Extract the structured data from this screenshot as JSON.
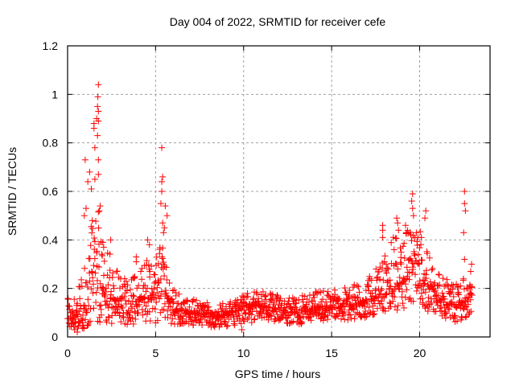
{
  "chart_data": {
    "type": "scatter",
    "title": "Day 004 of 2022, SRMTID for receiver cefe",
    "xlabel": "GPS time / hours",
    "ylabel": "SRMTID / TECUs",
    "xlim": [
      0,
      24
    ],
    "ylim": [
      0,
      1.2
    ],
    "xticks": [
      0,
      5,
      10,
      15,
      20
    ],
    "xtick_labels": [
      "0",
      "5",
      "10",
      "15",
      "20"
    ],
    "yticks": [
      0,
      0.2,
      0.4,
      0.6,
      0.8,
      1.0,
      1.2
    ],
    "ytick_labels": [
      "0",
      "0.2",
      "0.4",
      "0.6",
      "0.8",
      "1",
      "1.2"
    ],
    "grid": true,
    "marker": "+",
    "series": [
      {
        "name": "SRMTID",
        "color": "#ff0000",
        "x_range_hours": [
          0.0,
          23.0
        ],
        "envelope_note": "Dense scatter of thousands of points; envelope gives approximate median and upper/lower spread per hour",
        "envelope": [
          {
            "hour": 0.0,
            "median": 0.12,
            "low": 0.04,
            "high": 0.19
          },
          {
            "hour": 0.5,
            "median": 0.08,
            "low": 0.02,
            "high": 0.17
          },
          {
            "hour": 1.0,
            "median": 0.1,
            "low": 0.03,
            "high": 0.3
          },
          {
            "hour": 1.5,
            "median": 0.28,
            "low": 0.06,
            "high": 0.6
          },
          {
            "hour": 2.0,
            "median": 0.2,
            "low": 0.06,
            "high": 0.45
          },
          {
            "hour": 2.5,
            "median": 0.16,
            "low": 0.05,
            "high": 0.33
          },
          {
            "hour": 3.0,
            "median": 0.14,
            "low": 0.05,
            "high": 0.27
          },
          {
            "hour": 3.5,
            "median": 0.12,
            "low": 0.05,
            "high": 0.22
          },
          {
            "hour": 4.0,
            "median": 0.15,
            "low": 0.05,
            "high": 0.3
          },
          {
            "hour": 4.5,
            "median": 0.17,
            "low": 0.06,
            "high": 0.32
          },
          {
            "hour": 5.0,
            "median": 0.16,
            "low": 0.05,
            "high": 0.3
          },
          {
            "hour": 5.3,
            "median": 0.3,
            "low": 0.08,
            "high": 0.48
          },
          {
            "hour": 5.6,
            "median": 0.18,
            "low": 0.06,
            "high": 0.33
          },
          {
            "hour": 6.0,
            "median": 0.11,
            "low": 0.05,
            "high": 0.2
          },
          {
            "hour": 7.0,
            "median": 0.1,
            "low": 0.05,
            "high": 0.16
          },
          {
            "hour": 8.0,
            "median": 0.09,
            "low": 0.04,
            "high": 0.14
          },
          {
            "hour": 9.0,
            "median": 0.09,
            "low": 0.04,
            "high": 0.14
          },
          {
            "hour": 10.0,
            "median": 0.12,
            "low": 0.05,
            "high": 0.18
          },
          {
            "hour": 11.0,
            "median": 0.13,
            "low": 0.07,
            "high": 0.19
          },
          {
            "hour": 12.0,
            "median": 0.11,
            "low": 0.06,
            "high": 0.17
          },
          {
            "hour": 13.0,
            "median": 0.1,
            "low": 0.05,
            "high": 0.16
          },
          {
            "hour": 14.0,
            "median": 0.11,
            "low": 0.06,
            "high": 0.19
          },
          {
            "hour": 15.0,
            "median": 0.12,
            "low": 0.07,
            "high": 0.19
          },
          {
            "hour": 16.0,
            "median": 0.13,
            "low": 0.07,
            "high": 0.21
          },
          {
            "hour": 17.0,
            "median": 0.15,
            "low": 0.08,
            "high": 0.24
          },
          {
            "hour": 18.0,
            "median": 0.19,
            "low": 0.1,
            "high": 0.33
          },
          {
            "hour": 18.5,
            "median": 0.22,
            "low": 0.12,
            "high": 0.42
          },
          {
            "hour": 19.0,
            "median": 0.22,
            "low": 0.1,
            "high": 0.4
          },
          {
            "hour": 19.5,
            "median": 0.28,
            "low": 0.13,
            "high": 0.48
          },
          {
            "hour": 20.0,
            "median": 0.3,
            "low": 0.14,
            "high": 0.45
          },
          {
            "hour": 20.5,
            "median": 0.22,
            "low": 0.1,
            "high": 0.35
          },
          {
            "hour": 21.0,
            "median": 0.17,
            "low": 0.08,
            "high": 0.28
          },
          {
            "hour": 21.5,
            "median": 0.14,
            "low": 0.07,
            "high": 0.24
          },
          {
            "hour": 22.0,
            "median": 0.13,
            "low": 0.06,
            "high": 0.22
          },
          {
            "hour": 22.5,
            "median": 0.15,
            "low": 0.07,
            "high": 0.24
          },
          {
            "hour": 23.0,
            "median": 0.17,
            "low": 0.1,
            "high": 0.22
          }
        ],
        "notable_points": [
          {
            "x": 1.75,
            "y": 1.04
          },
          {
            "x": 1.72,
            "y": 0.99
          },
          {
            "x": 1.7,
            "y": 0.95
          },
          {
            "x": 1.75,
            "y": 0.93
          },
          {
            "x": 1.65,
            "y": 0.9
          },
          {
            "x": 1.75,
            "y": 0.89
          },
          {
            "x": 1.5,
            "y": 0.88
          },
          {
            "x": 1.5,
            "y": 0.86
          },
          {
            "x": 1.7,
            "y": 0.83
          },
          {
            "x": 1.55,
            "y": 0.78
          },
          {
            "x": 1.75,
            "y": 0.73
          },
          {
            "x": 1.0,
            "y": 0.73
          },
          {
            "x": 1.25,
            "y": 0.68
          },
          {
            "x": 1.75,
            "y": 0.67
          },
          {
            "x": 1.15,
            "y": 0.64
          },
          {
            "x": 1.55,
            "y": 0.65
          },
          {
            "x": 1.35,
            "y": 0.61
          },
          {
            "x": 1.05,
            "y": 0.53
          },
          {
            "x": 1.85,
            "y": 0.54
          },
          {
            "x": 1.8,
            "y": 0.52
          },
          {
            "x": 0.95,
            "y": 0.5
          },
          {
            "x": 1.4,
            "y": 0.48
          },
          {
            "x": 2.45,
            "y": 0.4
          },
          {
            "x": 2.0,
            "y": 0.39
          },
          {
            "x": 2.05,
            "y": 0.37
          },
          {
            "x": 4.55,
            "y": 0.4
          },
          {
            "x": 4.65,
            "y": 0.38
          },
          {
            "x": 3.9,
            "y": 0.33
          },
          {
            "x": 3.9,
            "y": 0.31
          },
          {
            "x": 5.35,
            "y": 0.78
          },
          {
            "x": 5.4,
            "y": 0.66
          },
          {
            "x": 5.35,
            "y": 0.64
          },
          {
            "x": 5.35,
            "y": 0.6
          },
          {
            "x": 5.3,
            "y": 0.55
          },
          {
            "x": 5.55,
            "y": 0.54
          },
          {
            "x": 5.65,
            "y": 0.5
          },
          {
            "x": 5.4,
            "y": 0.47
          },
          {
            "x": 5.5,
            "y": 0.45
          },
          {
            "x": 5.45,
            "y": 0.43
          },
          {
            "x": 17.9,
            "y": 0.46
          },
          {
            "x": 17.9,
            "y": 0.44
          },
          {
            "x": 17.9,
            "y": 0.41
          },
          {
            "x": 18.7,
            "y": 0.49
          },
          {
            "x": 18.75,
            "y": 0.47
          },
          {
            "x": 18.8,
            "y": 0.44
          },
          {
            "x": 19.6,
            "y": 0.59
          },
          {
            "x": 19.55,
            "y": 0.56
          },
          {
            "x": 19.6,
            "y": 0.53
          },
          {
            "x": 19.65,
            "y": 0.5
          },
          {
            "x": 20.35,
            "y": 0.52
          },
          {
            "x": 20.3,
            "y": 0.49
          },
          {
            "x": 19.2,
            "y": 0.46
          },
          {
            "x": 19.25,
            "y": 0.43
          },
          {
            "x": 19.9,
            "y": 0.41
          },
          {
            "x": 20.1,
            "y": 0.41
          },
          {
            "x": 22.55,
            "y": 0.6
          },
          {
            "x": 22.55,
            "y": 0.55
          },
          {
            "x": 22.6,
            "y": 0.52
          },
          {
            "x": 22.5,
            "y": 0.43
          },
          {
            "x": 22.55,
            "y": 0.32
          },
          {
            "x": 22.95,
            "y": 0.3
          },
          {
            "x": 22.9,
            "y": 0.27
          },
          {
            "x": 9.9,
            "y": 0.03
          },
          {
            "x": 0.55,
            "y": 0.02
          },
          {
            "x": 0.4,
            "y": 0.03
          }
        ]
      }
    ]
  }
}
